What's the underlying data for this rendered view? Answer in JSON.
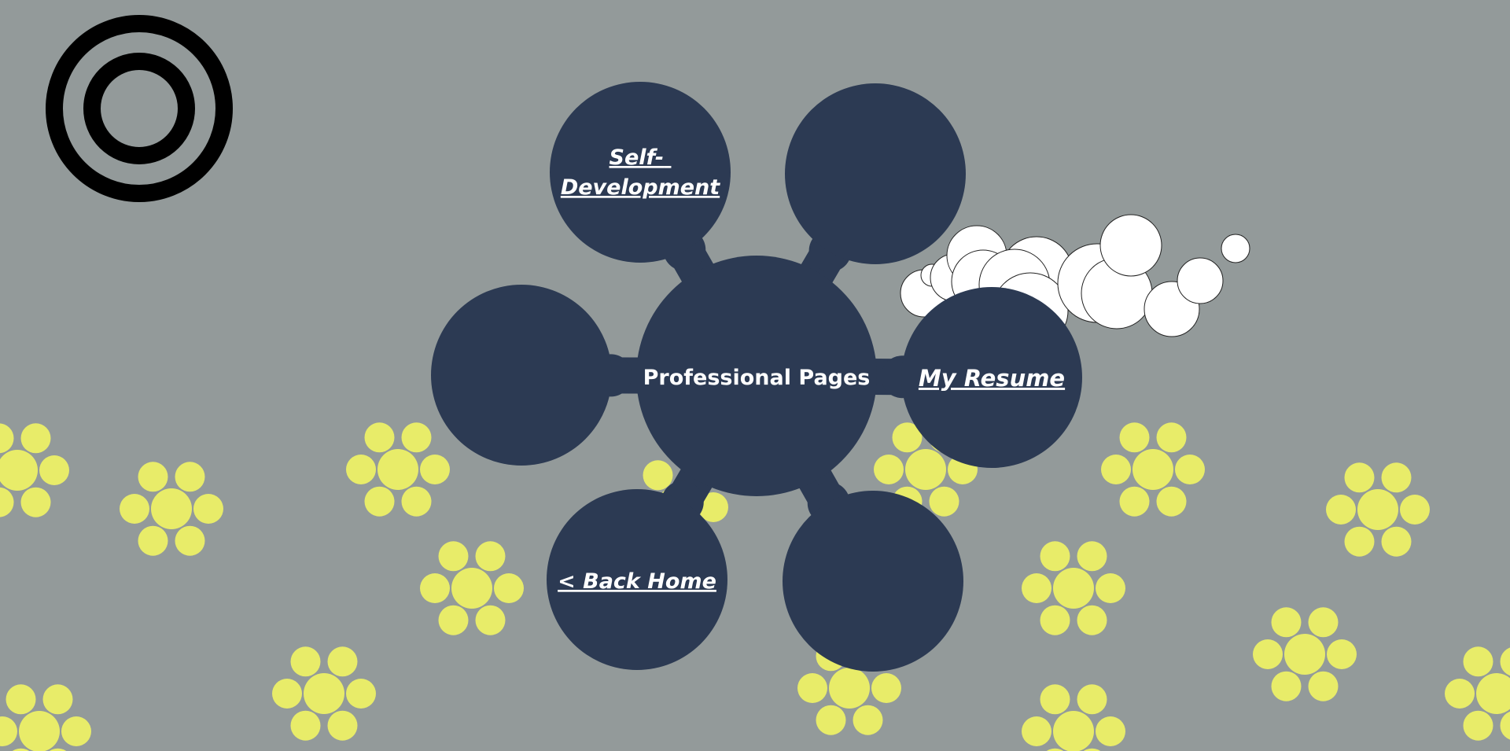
{
  "page": {
    "background_color": "#939a9a",
    "node_color": "#2c3a53",
    "flower_color": "#e8ec69",
    "ring_color": "#000000"
  },
  "center": {
    "label": "Professional Pages"
  },
  "nodes": {
    "self_development": {
      "label_line1": "Self-",
      "label_line2": "Development"
    },
    "my_resume": {
      "label": "My Resume"
    },
    "back_home": {
      "label": "< Back Home"
    }
  },
  "icons": {
    "corner": "concentric-rings-icon",
    "decoration": "cloud-bubbles-icon",
    "pattern": "flower-icon"
  }
}
